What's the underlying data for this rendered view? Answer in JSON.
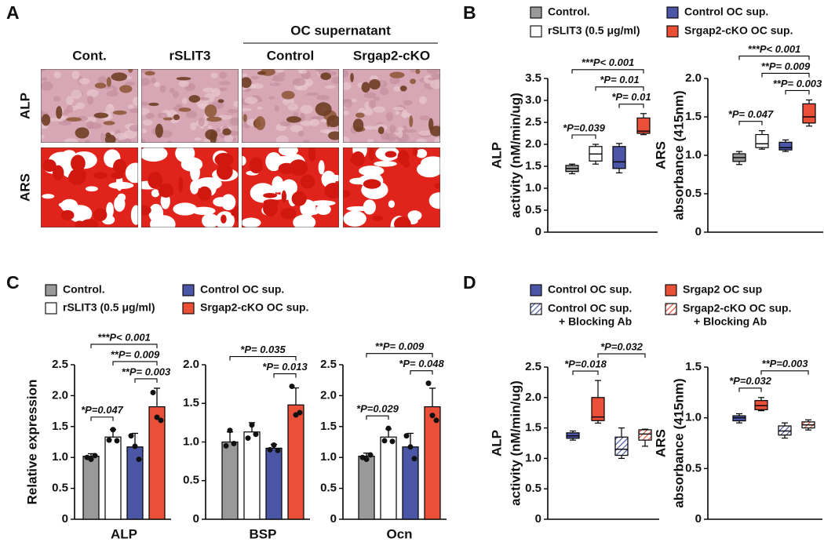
{
  "panel_a": {
    "panel": "A",
    "group_header": "OC supernatant",
    "columns": [
      "Cont.",
      "rSLIT3",
      "Control",
      "Srgap2-cKO"
    ],
    "rows": [
      "ALP",
      "ARS"
    ]
  },
  "chart_data": [
    {
      "type": "box",
      "panel": "B",
      "ylabel": [
        "ALP",
        "activity (nM/min/ug)"
      ],
      "ylim": [
        0,
        3.5
      ],
      "yticks": [
        0,
        0.5,
        {
          "value": 1,
          "label": "1.0"
        },
        1.5,
        {
          "value": 2,
          "label": "2.0"
        },
        2.5,
        {
          "value": 3,
          "label": "3.0"
        },
        3.5
      ],
      "series": [
        {
          "name": "Control.",
          "color": "#999999",
          "min": 1.33,
          "q1": 1.38,
          "median": 1.45,
          "q3": 1.52,
          "max": 1.55
        },
        {
          "name": "rSLIT3 (0.5 μg/ml)",
          "color": "#ffffff",
          "min": 1.55,
          "q1": 1.62,
          "median": 1.78,
          "q3": 1.95,
          "max": 2.0
        },
        {
          "name": "Control OC sup.",
          "color": "#4b56a6",
          "min": 1.35,
          "q1": 1.45,
          "median": 1.6,
          "q3": 1.95,
          "max": 2.02
        },
        {
          "name": "Srgap2-cKO OC sup.",
          "color": "#ea5038",
          "min": 2.22,
          "q1": 2.25,
          "median": 2.3,
          "q3": 2.6,
          "max": 2.7
        }
      ],
      "annotations": [
        {
          "text": "*P=0.039",
          "groups": [
            0,
            1
          ]
        },
        {
          "text": "*P= 0.01",
          "groups": [
            2,
            3
          ]
        },
        {
          "text": "*P= 0.01",
          "groups": [
            1,
            3
          ]
        },
        {
          "text": "***P< 0.001",
          "groups": [
            0,
            3
          ]
        }
      ]
    },
    {
      "type": "box",
      "ylabel": [
        "ARS",
        "absorbance (415nm)"
      ],
      "ylim": [
        0,
        2
      ],
      "yticks": [
        0,
        0.5,
        {
          "value": 1,
          "label": "1.0"
        },
        1.5,
        {
          "value": 2,
          "label": "2.0"
        }
      ],
      "series": [
        {
          "color": "#999999",
          "min": 0.88,
          "q1": 0.92,
          "median": 0.97,
          "q3": 1.02,
          "max": 1.05
        },
        {
          "color": "#ffffff",
          "min": 1.08,
          "q1": 1.1,
          "median": 1.15,
          "q3": 1.27,
          "max": 1.32
        },
        {
          "color": "#4b56a6",
          "min": 1.05,
          "q1": 1.07,
          "median": 1.1,
          "q3": 1.17,
          "max": 1.2
        },
        {
          "color": "#ea5038",
          "min": 1.38,
          "q1": 1.42,
          "median": 1.5,
          "q3": 1.67,
          "max": 1.72
        }
      ],
      "annotations": [
        {
          "text": "*P= 0.047",
          "groups": [
            0,
            1
          ]
        },
        {
          "text": "**P= 0.003",
          "groups": [
            2,
            3
          ]
        },
        {
          "text": "**P= 0.009",
          "groups": [
            1,
            3
          ]
        },
        {
          "text": "***P< 0.001",
          "groups": [
            0,
            3
          ]
        }
      ]
    },
    {
      "type": "bar",
      "panel": "C",
      "ylabel": "Relative expression",
      "xlabel": "ALP",
      "ylim": [
        0,
        2.5
      ],
      "yticks": [
        0,
        0.5,
        {
          "value": 1,
          "label": "1.0"
        },
        1.5,
        {
          "value": 2,
          "label": "2.0"
        },
        2.5
      ],
      "series": [
        {
          "name": "Control.",
          "color": "#999999",
          "value": 1.02,
          "error": 0.04,
          "points": [
            1.0,
            0.97,
            1.03
          ]
        },
        {
          "name": "rSLIT3 (0.5 μg/ml)",
          "color": "#ffffff",
          "value": 1.33,
          "error": 0.12,
          "points": [
            1.28,
            1.45,
            1.27
          ]
        },
        {
          "name": "Control OC sup.",
          "color": "#4b56a6",
          "value": 1.17,
          "error": 0.22,
          "points": [
            1.35,
            1.18,
            0.97
          ]
        },
        {
          "name": "Srgap2-cKO OC sup.",
          "color": "#ea5038",
          "value": 1.82,
          "error": 0.3,
          "points": [
            2.05,
            1.65,
            1.6
          ]
        }
      ],
      "annotations": [
        {
          "text": "*P=0.047",
          "groups": [
            0,
            1
          ]
        },
        {
          "text": "**P= 0.003",
          "groups": [
            2,
            3
          ]
        },
        {
          "text": "**P= 0.009",
          "groups": [
            1,
            3
          ]
        },
        {
          "text": "***P< 0.001",
          "groups": [
            0,
            3
          ]
        }
      ]
    },
    {
      "type": "bar",
      "xlabel": "BSP",
      "ylim": [
        0,
        2
      ],
      "yticks": [
        0,
        0.5,
        {
          "value": 1,
          "label": "1.0"
        },
        1.5,
        {
          "value": 2,
          "label": "2.0"
        }
      ],
      "series": [
        {
          "color": "#999999",
          "value": 1.0,
          "error": 0.13,
          "points": [
            0.95,
            1.15,
            0.98
          ]
        },
        {
          "color": "#ffffff",
          "value": 1.13,
          "error": 0.12,
          "points": [
            1.05,
            1.22,
            1.1
          ]
        },
        {
          "color": "#4b56a6",
          "value": 0.92,
          "error": 0.05,
          "points": [
            0.9,
            0.96,
            0.89
          ]
        },
        {
          "color": "#ea5038",
          "value": 1.48,
          "error": 0.22,
          "points": [
            1.72,
            1.35,
            1.38
          ]
        }
      ],
      "annotations": [
        {
          "text": "*P= 0.013",
          "groups": [
            2,
            3
          ]
        },
        {
          "text": "*P= 0.035",
          "groups": [
            0,
            3
          ]
        }
      ]
    },
    {
      "type": "bar",
      "xlabel": "Ocn",
      "ylim": [
        0,
        2.5
      ],
      "yticks": [
        0,
        0.5,
        {
          "value": 1,
          "label": "1.0"
        },
        1.5,
        {
          "value": 2,
          "label": "2.0"
        },
        2.5
      ],
      "series": [
        {
          "color": "#999999",
          "value": 1.02,
          "error": 0.05,
          "points": [
            1.0,
            0.97,
            1.04
          ]
        },
        {
          "color": "#ffffff",
          "value": 1.33,
          "error": 0.13,
          "points": [
            1.27,
            1.47,
            1.26
          ]
        },
        {
          "color": "#4b56a6",
          "value": 1.17,
          "error": 0.22,
          "points": [
            1.35,
            1.17,
            0.98
          ]
        },
        {
          "color": "#ea5038",
          "value": 1.82,
          "error": 0.3,
          "points": [
            2.2,
            1.68,
            1.6
          ]
        }
      ],
      "annotations": [
        {
          "text": "*P=0.029",
          "groups": [
            0,
            1
          ]
        },
        {
          "text": "*P= 0.048",
          "groups": [
            2,
            3
          ]
        },
        {
          "text": "**P= 0.009",
          "groups": [
            0,
            3
          ]
        }
      ]
    },
    {
      "type": "box",
      "panel": "D",
      "ylabel": [
        "ALP",
        "activity (nM/min/ug)"
      ],
      "ylim": [
        0,
        2.5
      ],
      "yticks": [
        0,
        0.5,
        {
          "value": 1,
          "label": "1.0"
        },
        1.5,
        {
          "value": 2,
          "label": "2.0"
        },
        2.5
      ],
      "series": [
        {
          "name": "Control OC sup.",
          "color": "#4b56a6",
          "hatch": false,
          "min": 1.3,
          "q1": 1.33,
          "median": 1.37,
          "q3": 1.42,
          "max": 1.45
        },
        {
          "name": "Srgap2  OC sup",
          "color": "#ea5038",
          "hatch": false,
          "min": 1.58,
          "q1": 1.62,
          "median": 1.68,
          "q3": 2.0,
          "max": 2.28
        },
        {
          "name": [
            "Control OC sup.",
            "+ Blocking Ab"
          ],
          "color": "#4b56a6",
          "hatch": true,
          "min": 1.0,
          "q1": 1.05,
          "median": 1.15,
          "q3": 1.35,
          "max": 1.5
        },
        {
          "name": [
            "Srgap2-cKO OC sup.",
            "+ Blocking Ab"
          ],
          "color": "#ea5038",
          "hatch": true,
          "min": 1.2,
          "q1": 1.3,
          "median": 1.4,
          "q3": 1.47,
          "max": 1.48
        }
      ],
      "annotations": [
        {
          "text": "*P=0.018",
          "groups": [
            0,
            1
          ]
        },
        {
          "text": "*P=0.032",
          "groups": [
            1,
            3
          ]
        }
      ]
    },
    {
      "type": "box",
      "ylabel": [
        "ARS",
        "absorbance (415nm)"
      ],
      "ylim": [
        0,
        1.5
      ],
      "yticks": [
        0,
        0.5,
        {
          "value": 1,
          "label": "1.0"
        },
        1.5
      ],
      "series": [
        {
          "color": "#4b56a6",
          "hatch": false,
          "min": 0.95,
          "q1": 0.97,
          "median": 1.0,
          "q3": 1.02,
          "max": 1.04
        },
        {
          "color": "#ea5038",
          "hatch": false,
          "min": 1.07,
          "q1": 1.08,
          "median": 1.12,
          "q3": 1.17,
          "max": 1.2
        },
        {
          "color": "#4b56a6",
          "hatch": true,
          "min": 0.8,
          "q1": 0.83,
          "median": 0.87,
          "q3": 0.92,
          "max": 0.95
        },
        {
          "color": "#ea5038",
          "hatch": true,
          "min": 0.88,
          "q1": 0.9,
          "median": 0.93,
          "q3": 0.96,
          "max": 0.98
        }
      ],
      "annotations": [
        {
          "text": "*P=0.032",
          "groups": [
            0,
            1
          ]
        },
        {
          "text": "**P=0.003",
          "groups": [
            1,
            3
          ]
        }
      ]
    }
  ]
}
